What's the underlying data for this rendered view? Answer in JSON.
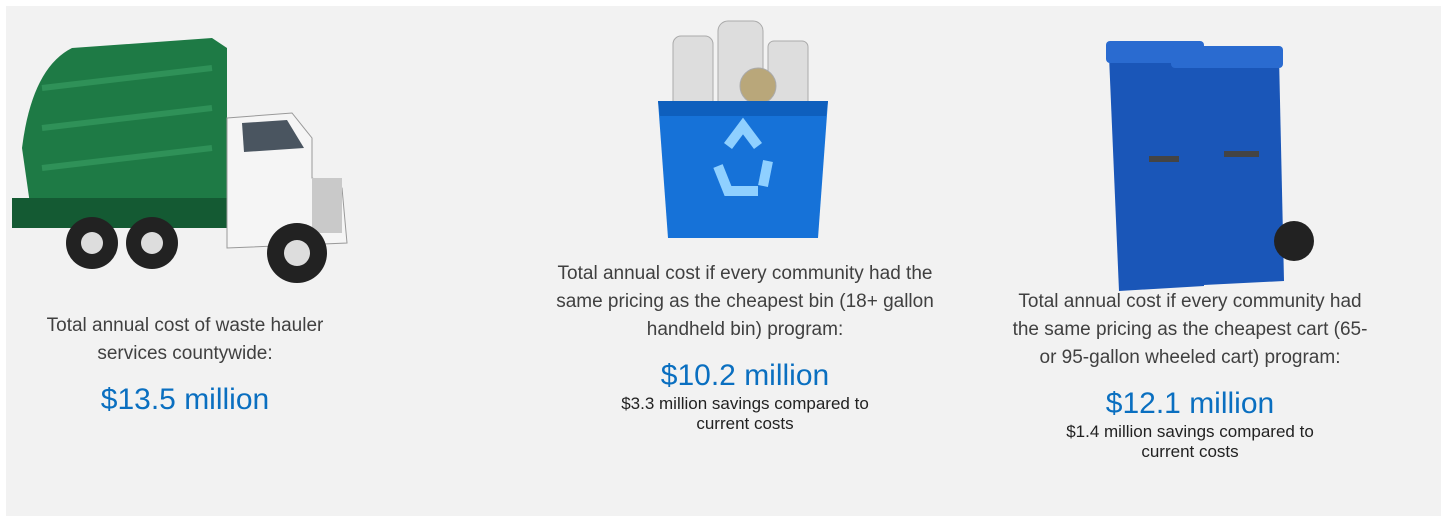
{
  "panels": [
    {
      "description": "Total annual cost of waste hauler services countywide:",
      "amount": "$13.5 million"
    },
    {
      "description": "Total annual cost if every community had the same pricing as the cheapest bin (18+ gallon handheld bin) program:",
      "amount": "$10.2 million",
      "savings": "$3.3 million savings compared to current costs"
    },
    {
      "description": "Total annual cost if every community had the same pricing as the cheapest cart (65- or 95-gallon wheeled cart) program:",
      "amount": "$12.1 million",
      "savings": "$1.4 million savings compared to current costs"
    }
  ]
}
